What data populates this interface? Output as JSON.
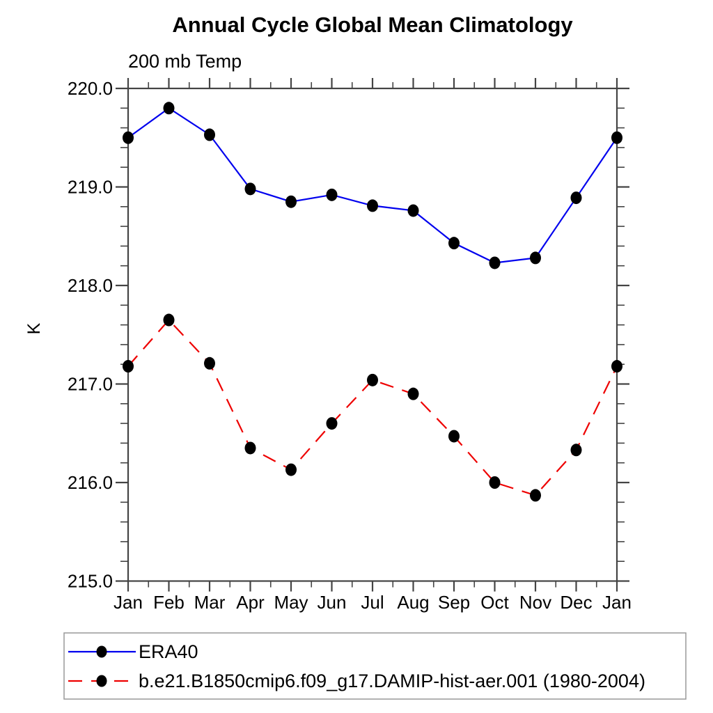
{
  "chart_data": {
    "type": "line",
    "title": "Annual Cycle Global Mean Climatology",
    "subtitle": "200 mb Temp",
    "ylabel": "K",
    "categories": [
      "Jan",
      "Feb",
      "Mar",
      "Apr",
      "May",
      "Jun",
      "Jul",
      "Aug",
      "Sep",
      "Oct",
      "Nov",
      "Dec",
      "Jan"
    ],
    "ylim": [
      215.0,
      220.0
    ],
    "ytick_major_step": 1.0,
    "ytick_minor_step": 0.2,
    "xtick_minor_per_month": true,
    "grid": false,
    "legend_position": "bottom",
    "y_tick_labels": [
      "220.0",
      "219.0",
      "218.0",
      "217.0",
      "216.0",
      "215.0"
    ],
    "series": [
      {
        "name": "ERA40",
        "line_style": "solid",
        "color": "#0000ee",
        "marker": "filled-circle",
        "marker_color": "#000000",
        "values": [
          219.5,
          219.8,
          219.53,
          218.98,
          218.85,
          218.92,
          218.81,
          218.76,
          218.43,
          218.23,
          218.28,
          218.89,
          219.5
        ]
      },
      {
        "name": "b.e21.B1850cmip6.f09_g17.DAMIP-hist-aer.001 (1980-2004)",
        "line_style": "dashed",
        "color": "#ee0000",
        "marker": "filled-circle",
        "marker_color": "#000000",
        "values": [
          217.18,
          217.65,
          217.21,
          216.35,
          216.13,
          216.6,
          217.04,
          216.9,
          216.47,
          216.0,
          215.87,
          216.33,
          217.18
        ]
      }
    ],
    "axis_color": "#444444"
  }
}
